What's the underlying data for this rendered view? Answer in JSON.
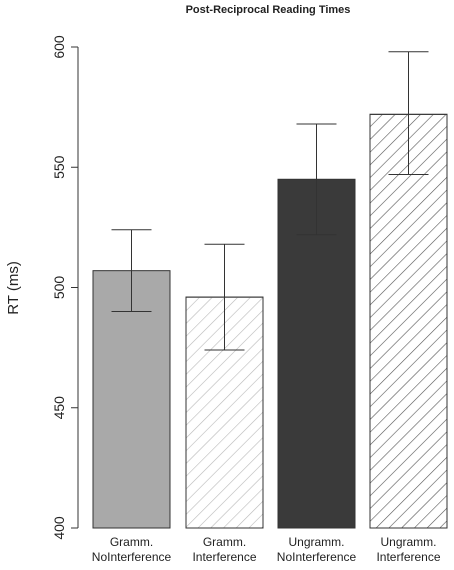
{
  "chart_data": {
    "type": "bar",
    "title": "Post-Reciprocal Reading Times",
    "xlabel": "",
    "ylabel": "RT (ms)",
    "ylim": [
      400,
      600
    ],
    "yticks": [
      "400",
      "450",
      "500",
      "550",
      "600"
    ],
    "grid": false,
    "categories": [
      [
        "Gramm.",
        "NoInterference"
      ],
      [
        "Gramm.",
        "Interference"
      ],
      [
        "Ungramm.",
        "NoInterference"
      ],
      [
        "Ungramm.",
        "Interference"
      ]
    ],
    "values": [
      507,
      496,
      545,
      572
    ],
    "error_bars": [
      {
        "low": 490,
        "high": 524
      },
      {
        "low": 474,
        "high": 518
      },
      {
        "low": 522,
        "high": 568
      },
      {
        "low": 547,
        "high": 598
      }
    ],
    "styles": [
      {
        "fill": "#a9a9a9",
        "hatch": false
      },
      {
        "fill": "#ffffff",
        "hatch": true,
        "hatch_color": "#b8b8b8"
      },
      {
        "fill": "#3a3a3a",
        "hatch": false
      },
      {
        "fill": "#ffffff",
        "hatch": true,
        "hatch_color": "#555555"
      }
    ]
  }
}
